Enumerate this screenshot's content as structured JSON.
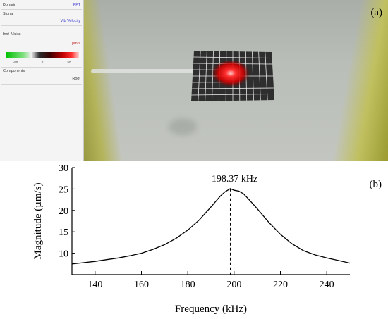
{
  "side_panel": {
    "rows": [
      {
        "key": "Domain",
        "value": "FFT"
      },
      {
        "key": "Signal",
        "value": ""
      },
      {
        "key": "",
        "value": "Vib Velocity"
      },
      {
        "key": "Inst. Value",
        "value": ""
      },
      {
        "key": "",
        "value": "µm/s"
      },
      {
        "key": "Components",
        "value": ""
      },
      {
        "key": "",
        "value": "Root"
      }
    ],
    "colorbar_ticks": [
      "-50",
      "0",
      "50"
    ],
    "colors": {
      "colormap_negative": "#00c000",
      "colormap_positive": "#ff3030"
    }
  },
  "camera_view": {
    "label": "(a)",
    "hotspot_color": "#ff2020"
  },
  "chart_data": {
    "type": "line",
    "panel_label": "(b)",
    "xlabel": "Frequency (kHz)",
    "ylabel": "Magnitude (µm/s)",
    "xlim": [
      130,
      250
    ],
    "ylim": [
      5,
      30
    ],
    "xticks": [
      140,
      160,
      180,
      200,
      220,
      240
    ],
    "yticks": [
      10,
      15,
      20,
      25,
      30
    ],
    "grid": false,
    "annotation": {
      "text": "198.37 kHz",
      "x": 198.37,
      "y": 25.1,
      "line_style": "dashed"
    },
    "series": [
      {
        "x": [
          130,
          135,
          140,
          145,
          150,
          155,
          160,
          165,
          170,
          175,
          180,
          185,
          190,
          194,
          196,
          198.37,
          200,
          202,
          204,
          206,
          210,
          215,
          220,
          225,
          230,
          235,
          240,
          245,
          250
        ],
        "values": [
          7.5,
          7.8,
          8.1,
          8.5,
          8.9,
          9.4,
          10.0,
          10.9,
          12.0,
          13.5,
          15.4,
          17.8,
          20.8,
          23.3,
          24.3,
          25.1,
          24.7,
          24.5,
          23.9,
          22.8,
          20.4,
          17.2,
          14.4,
          12.2,
          10.6,
          9.6,
          8.9,
          8.3,
          7.7
        ]
      }
    ]
  }
}
